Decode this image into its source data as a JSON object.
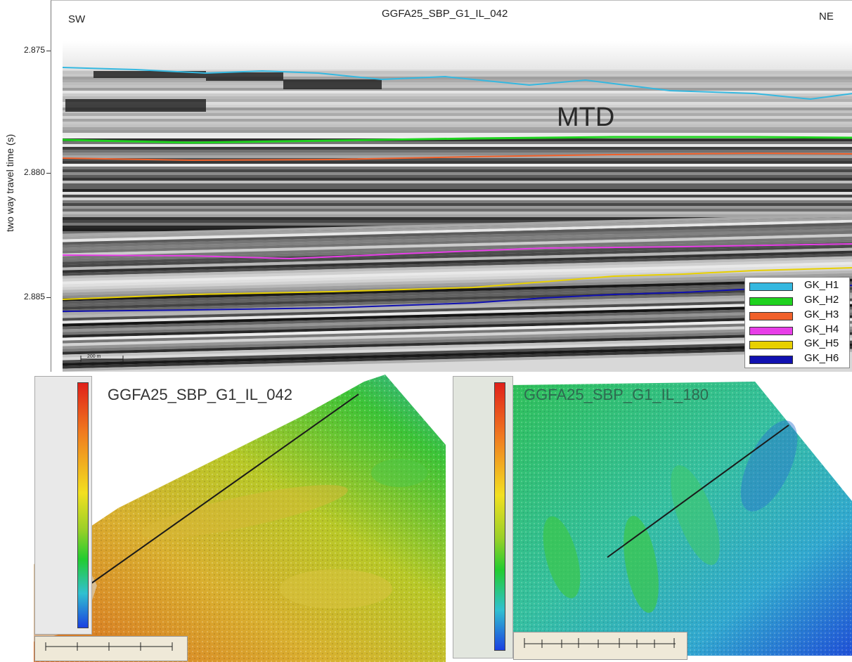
{
  "seismic": {
    "title": "GGFA25_SBP_G1_IL_042",
    "left_label": "SW",
    "right_label": "NE",
    "y_axis_title": "two way travel time (s)",
    "y_ticks": [
      "2.875",
      "2.880",
      "2.885"
    ],
    "annotation": "MTD",
    "scale_bar_label": "200 m"
  },
  "legend": {
    "items": [
      {
        "label": "GK_H1",
        "color": "#35b8e0"
      },
      {
        "label": "GK_H2",
        "color": "#1fd21f"
      },
      {
        "label": "GK_H3",
        "color": "#f0602a"
      },
      {
        "label": "GK_H4",
        "color": "#e83ee8"
      },
      {
        "label": "GK_H5",
        "color": "#e8d000"
      },
      {
        "label": "GK_H6",
        "color": "#1010b0"
      }
    ]
  },
  "maps": {
    "left": {
      "title": "GGFA25_SBP_G1_IL_042"
    },
    "right": {
      "title": "GGFA25_SBP_G1_IL_180"
    }
  },
  "colors": {
    "colorbar_stops": [
      "#e0201a",
      "#f07a20",
      "#f2e020",
      "#9ad028",
      "#22cc30",
      "#30c0d0",
      "#1a40e0"
    ]
  }
}
